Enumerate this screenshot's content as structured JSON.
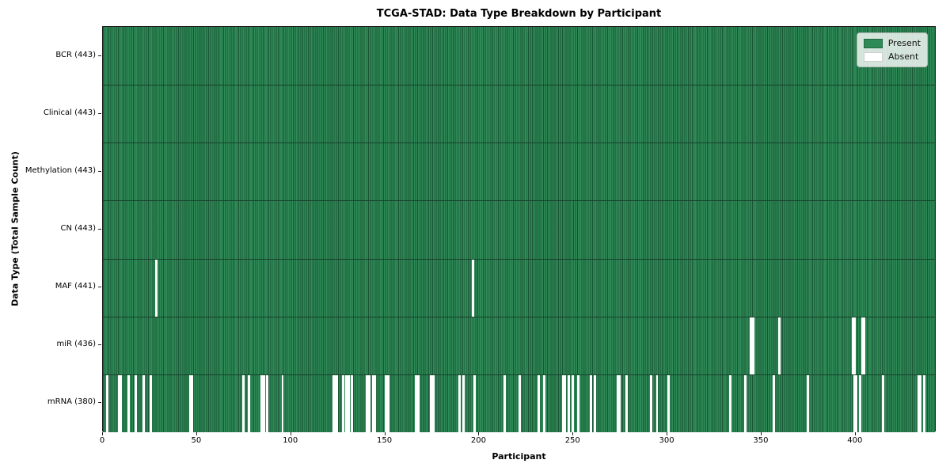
{
  "chart_data": {
    "type": "heatmap",
    "title": "TCGA-STAD: Data Type Breakdown by Participant",
    "xlabel": "Participant",
    "ylabel": "Data Type (Total Sample Count)",
    "x_ticks": [
      0,
      50,
      100,
      150,
      200,
      250,
      300,
      350,
      400
    ],
    "x_range": [
      0,
      443
    ],
    "n_participants": 443,
    "grid": false,
    "legend_position": "upper right",
    "colors": {
      "present": "#2e8b57",
      "absent": "#ffffff"
    },
    "legend": [
      {
        "label": "Present",
        "color": "#2e8b57"
      },
      {
        "label": "Absent",
        "color": "#ffffff"
      }
    ],
    "rows": [
      {
        "name": "BCR",
        "label": "BCR (443)",
        "present_count": 443,
        "absent": []
      },
      {
        "name": "Clinical",
        "label": "Clinical (443)",
        "present_count": 443,
        "absent": []
      },
      {
        "name": "Methylation",
        "label": "Methylation (443)",
        "present_count": 443,
        "absent": []
      },
      {
        "name": "CN",
        "label": "CN (443)",
        "present_count": 443,
        "absent": []
      },
      {
        "name": "MAF",
        "label": "MAF (441)",
        "present_count": 441,
        "absent": [
          28,
          196
        ]
      },
      {
        "name": "miR",
        "label": "miR (436)",
        "present_count": 436,
        "absent": [
          344,
          345,
          359,
          398,
          399,
          403,
          404
        ]
      },
      {
        "name": "mRNA",
        "label": "mRNA (380)",
        "present_count": 380,
        "absent": [
          2,
          8,
          9,
          13,
          17,
          21,
          25,
          46,
          47,
          74,
          77,
          84,
          85,
          87,
          95,
          122,
          123,
          124,
          127,
          129,
          130,
          132,
          140,
          141,
          143,
          144,
          150,
          151,
          166,
          167,
          174,
          175,
          189,
          191,
          197,
          213,
          221,
          231,
          234,
          244,
          245,
          247,
          249,
          252,
          259,
          261,
          273,
          274,
          278,
          291,
          294,
          300,
          333,
          341,
          356,
          374,
          399,
          400,
          402,
          414,
          433,
          434,
          436
        ]
      }
    ]
  }
}
